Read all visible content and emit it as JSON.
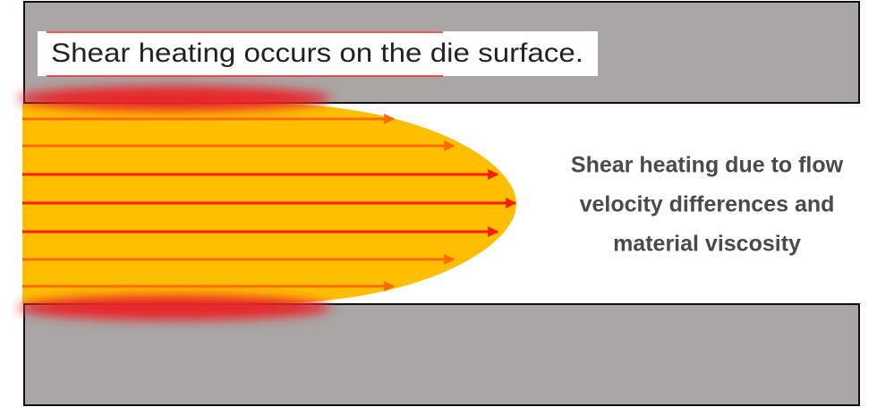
{
  "label": "Shear heating occurs on the die surface.",
  "description": {
    "lines": [
      "Shear heating due to flow",
      "velocity differences and",
      "material viscosity"
    ]
  }
}
